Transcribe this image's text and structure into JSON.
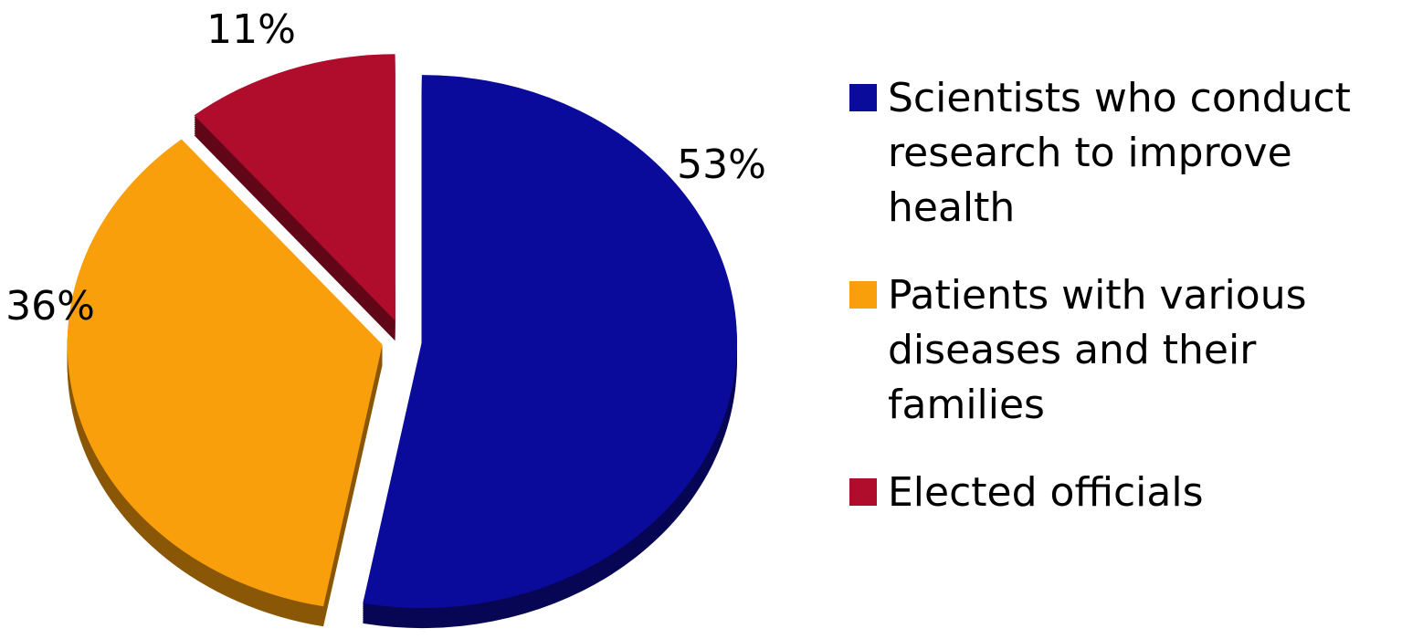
{
  "chart_data": {
    "type": "pie",
    "categories": [
      "Scientists who conduct research to improve health",
      "Patients with various diseases and their families",
      "Elected officials"
    ],
    "values": [
      53,
      36,
      11
    ],
    "value_labels": [
      "53%",
      "36%",
      "11%"
    ],
    "colors": [
      "#0b0b9b",
      "#fa9f0c",
      "#b00c2b"
    ]
  }
}
